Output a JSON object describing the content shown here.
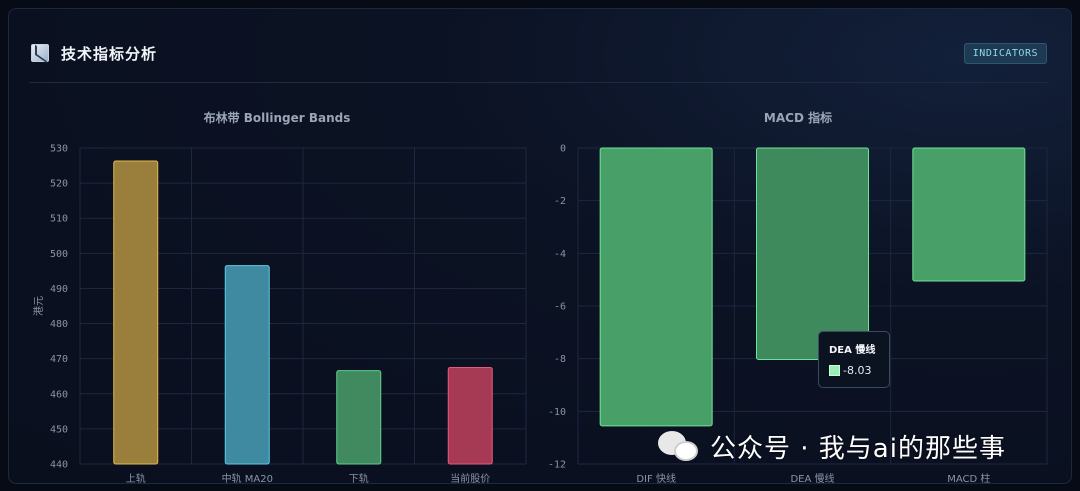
{
  "header": {
    "title": "技术指标分析",
    "badge": "INDICATORS",
    "icon": "chart-icon"
  },
  "chart_data": [
    {
      "type": "bar",
      "title": "布林带 Bollinger Bands",
      "ylabel": "港元",
      "ylim": [
        440,
        530
      ],
      "yticks": [
        440,
        450,
        460,
        470,
        480,
        490,
        500,
        510,
        520,
        530
      ],
      "categories": [
        "上轨",
        "中轨 MA20",
        "下轨",
        "当前股价"
      ],
      "values": [
        526.3,
        496.5,
        466.6,
        467.5
      ],
      "colors": [
        "#9a7f3c",
        "#3f8aa0",
        "#418a5f",
        "#a63a55"
      ],
      "borders": [
        "#e3b94f",
        "#5dcbe6",
        "#5fd08d",
        "#e25b7c"
      ],
      "grid": true
    },
    {
      "type": "bar",
      "title": "MACD 指标",
      "ylim": [
        -12,
        0
      ],
      "yticks": [
        0,
        -2,
        -4,
        -6,
        -8,
        -10,
        -12
      ],
      "categories": [
        "DIF 快线",
        "DEA 慢线",
        "MACD 柱"
      ],
      "values": [
        -10.55,
        -8.03,
        -5.05
      ],
      "colors": [
        "#48a068",
        "#3f8a5c",
        "#48a068"
      ],
      "borders": [
        "#6fe398",
        "#6fe398",
        "#6fe398"
      ],
      "grid": true,
      "tooltip": {
        "title": "DEA 慢线",
        "value": "-8.03",
        "swatch": "#9af0b4"
      }
    }
  ],
  "watermark": {
    "text": "公众号 · 我与ai的那些事"
  }
}
